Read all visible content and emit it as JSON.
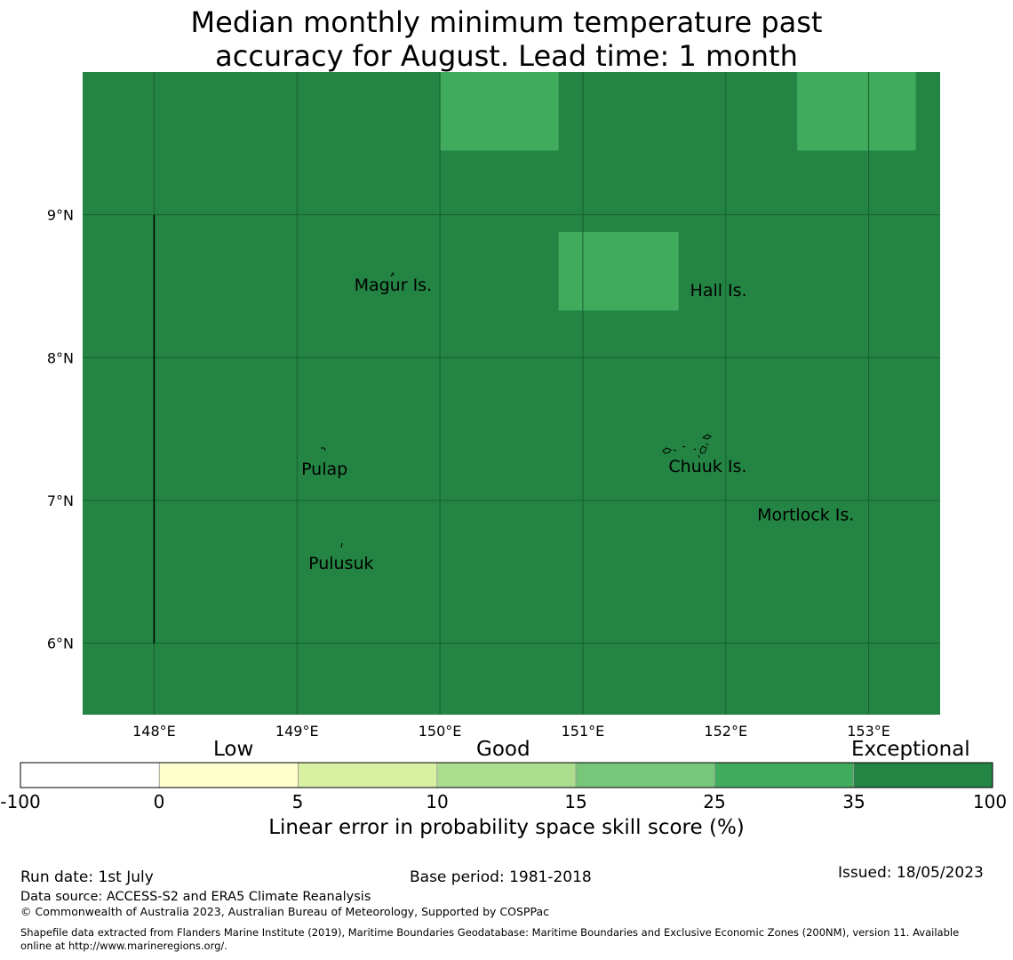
{
  "title_line1": "Median monthly minimum temperature past",
  "title_line2": "accuracy for August. Lead time: 1 month",
  "map": {
    "lon_range": [
      147.5,
      153.5
    ],
    "lat_range": [
      5.5,
      10
    ],
    "lon_ticks": [
      "148°E",
      "149°E",
      "150°E",
      "151°E",
      "152°E",
      "153°E"
    ],
    "lon_tick_values": [
      148,
      149,
      150,
      151,
      152,
      153
    ],
    "lat_ticks": [
      "9°N",
      "8°N",
      "7°N",
      "6°N"
    ],
    "lat_tick_values": [
      9,
      8,
      7,
      6
    ],
    "background_color": "#238443",
    "gridline_color": "#17602f",
    "highlight_color": "#41ab5d",
    "highlight_cells": [
      {
        "lon": [
          150.0,
          150.83
        ],
        "lat": [
          9.45,
          10.0
        ]
      },
      {
        "lon": [
          152.5,
          153.33
        ],
        "lat": [
          9.45,
          10.0
        ]
      },
      {
        "lon": [
          150.83,
          151.67
        ],
        "lat": [
          8.33,
          8.88
        ]
      }
    ],
    "boundary_line": {
      "lon": 148.0,
      "lat": [
        6.0,
        9.0
      ]
    },
    "places": [
      {
        "name": "Magur Is.",
        "lon": 149.4,
        "lat": 8.47
      },
      {
        "name": "Hall Is.",
        "lon": 151.75,
        "lat": 8.43
      },
      {
        "name": "Pulap",
        "lon": 149.03,
        "lat": 7.18
      },
      {
        "name": "Chuuk Is.",
        "lon": 151.6,
        "lat": 7.2
      },
      {
        "name": "Mortlock Is.",
        "lon": 152.22,
        "lat": 6.86
      },
      {
        "name": "Pulusuk",
        "lon": 149.08,
        "lat": 6.52
      }
    ]
  },
  "colorbar": {
    "categories": [
      "Low",
      "Good",
      "Exceptional"
    ],
    "ticks": [
      "-100",
      "0",
      "5",
      "10",
      "15",
      "25",
      "35",
      "100"
    ],
    "colors": [
      "#ffffff",
      "#ffffcc",
      "#d9f0a3",
      "#addd8e",
      "#78c679",
      "#41ab5d",
      "#238443"
    ],
    "label": "Linear error in probability space skill score (%)"
  },
  "footer": {
    "run_date": "Run date: 1st July",
    "base_period": "Base period: 1981-2018",
    "issued": "Issued: 18/05/2023",
    "data_source": "Data source: ACCESS-S2 and ERA5 Climate Reanalysis",
    "copyright": "© Commonwealth of Australia 2023, Australian Bureau of Meteorology, Supported by COSPPac",
    "shapefile_line1": "Shapefile data extracted from Flanders Marine Institute (2019), Maritime Boundaries Geodatabase: Maritime Boundaries and Exclusive Economic Zones (200NM), version 11. Available",
    "shapefile_line2": "online at http://www.marineregions.org/."
  }
}
